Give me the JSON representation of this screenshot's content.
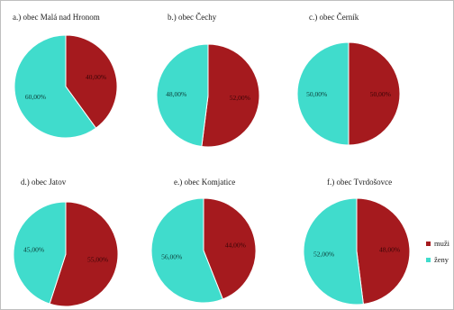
{
  "colors": {
    "muzi": "#a51a1e",
    "zeny": "#40dccc"
  },
  "legend": [
    {
      "label": "muži",
      "color": "#a51a1e"
    },
    {
      "label": "ženy",
      "color": "#40dccc"
    }
  ],
  "chart_data": [
    {
      "type": "pie",
      "title": "a.) obec Malá nad Hronom",
      "slices": [
        {
          "category": "muži",
          "value": 40,
          "label": "40,00%"
        },
        {
          "category": "ženy",
          "value": 60,
          "label": "60,00%"
        }
      ]
    },
    {
      "type": "pie",
      "title": "b.) obec Čechy",
      "slices": [
        {
          "category": "muži",
          "value": 52,
          "label": "52,00%"
        },
        {
          "category": "ženy",
          "value": 48,
          "label": "48,00%"
        }
      ]
    },
    {
      "type": "pie",
      "title": "c.) obec Černík",
      "slices": [
        {
          "category": "muži",
          "value": 50,
          "label": "50,00%"
        },
        {
          "category": "ženy",
          "value": 50,
          "label": "50,00%"
        }
      ]
    },
    {
      "type": "pie",
      "title": "d.) obec Jatov",
      "slices": [
        {
          "category": "muži",
          "value": 55,
          "label": "55,00%"
        },
        {
          "category": "ženy",
          "value": 45,
          "label": "45,00%"
        }
      ]
    },
    {
      "type": "pie",
      "title": "e.) obec Komjatice",
      "slices": [
        {
          "category": "muži",
          "value": 44,
          "label": "44,00%"
        },
        {
          "category": "ženy",
          "value": 56,
          "label": "56,00%"
        }
      ]
    },
    {
      "type": "pie",
      "title": "f.) obec Tvrdošovce",
      "slices": [
        {
          "category": "muži",
          "value": 48,
          "label": "48,00%"
        },
        {
          "category": "ženy",
          "value": 52,
          "label": "52,00%"
        }
      ]
    }
  ]
}
